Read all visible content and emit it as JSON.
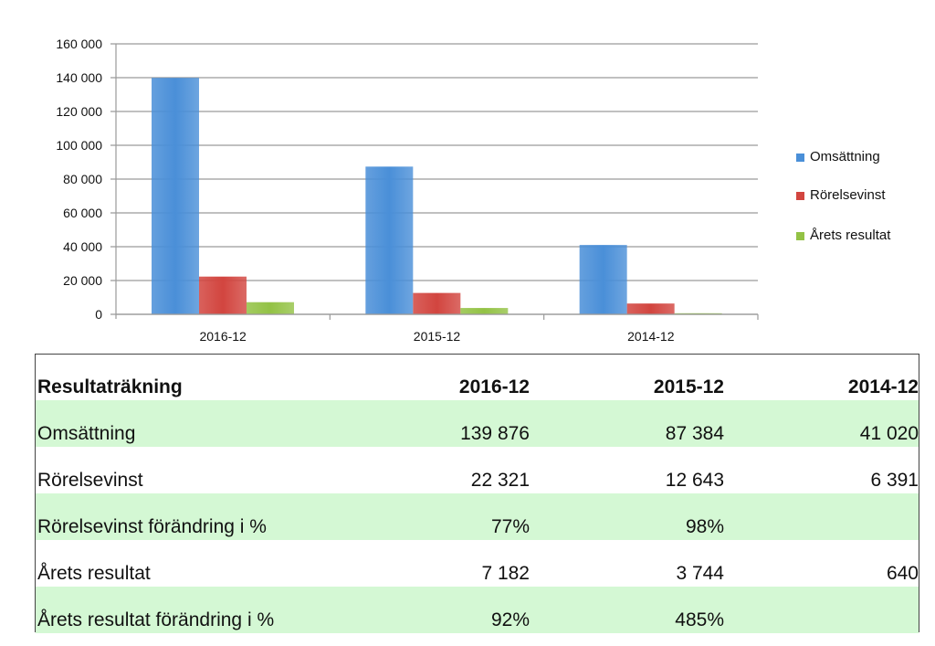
{
  "chart_data": {
    "type": "bar",
    "categories": [
      "2016-12",
      "2015-12",
      "2014-12"
    ],
    "series": [
      {
        "name": "Omsättning",
        "values": [
          139876,
          87384,
          41020
        ],
        "color": "#4a8fd8"
      },
      {
        "name": "Rörelsevinst",
        "values": [
          22321,
          12643,
          6391
        ],
        "color": "#d2453f"
      },
      {
        "name": "Årets resultat",
        "values": [
          7182,
          3744,
          640
        ],
        "color": "#93c245"
      }
    ],
    "ylim": [
      0,
      160000
    ],
    "yticks": [
      "0",
      "20 000",
      "40 000",
      "60 000",
      "80 000",
      "100 000",
      "120 000",
      "140 000",
      "160 000"
    ],
    "grid": true,
    "legend": "right"
  },
  "table": {
    "header": [
      "Resultaträkning",
      "2016-12",
      "2015-12",
      "2014-12"
    ],
    "rows": [
      {
        "label": "Omsättning",
        "v1": "139 876",
        "v2": "87 384",
        "v3": "41 020"
      },
      {
        "label": "Rörelsevinst",
        "v1": "22 321",
        "v2": "12 643",
        "v3": "6 391"
      },
      {
        "label": "Rörelsevinst förändring i %",
        "v1": "77%",
        "v2": "98%",
        "v3": ""
      },
      {
        "label": "Årets resultat",
        "v1": "7 182",
        "v2": "3 744",
        "v3": "640"
      },
      {
        "label": "Årets resultat förändring i %",
        "v1": "92%",
        "v2": "485%",
        "v3": ""
      }
    ]
  }
}
